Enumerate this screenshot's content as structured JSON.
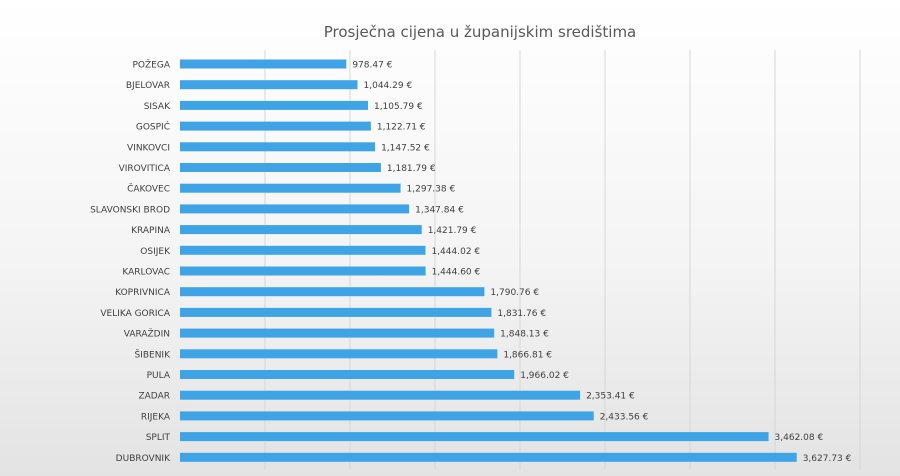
{
  "chart_data": {
    "type": "bar",
    "orientation": "horizontal",
    "title": "Prosječna cijena u županijskim središtima",
    "xlabel": "",
    "ylabel": "",
    "xlim": [
      0,
      4000
    ],
    "grid": true,
    "legend": "none",
    "bar_color": "#3ea4e6",
    "categories": [
      "POŽEGA",
      "BJELOVAR",
      "SISAK",
      "GOSPIĆ",
      "VINKOVCI",
      "VIROVITICA",
      "ČAKOVEC",
      "SLAVONSKI BROD",
      "KRAPINA",
      "OSIJEK",
      "KARLOVAC",
      "KOPRIVNICA",
      "VELIKA GORICA",
      "VARAŽDIN",
      "ŠIBENIK",
      "PULA",
      "ZADAR",
      "RIJEKA",
      "SPLIT",
      "DUBROVNIK"
    ],
    "values": [
      978.47,
      1044.29,
      1105.79,
      1122.71,
      1147.52,
      1181.79,
      1297.38,
      1347.84,
      1421.79,
      1444.02,
      1444.6,
      1790.76,
      1831.76,
      1848.13,
      1866.81,
      1966.02,
      2353.41,
      2433.56,
      3462.08,
      3627.73
    ],
    "value_labels": [
      "978.47 €",
      "1,044.29 €",
      "1,105.79 €",
      "1,122.71 €",
      "1,147.52 €",
      "1,181.79 €",
      "1,297.38 €",
      "1,347.84 €",
      "1,421.79 €",
      "1,444.02 €",
      "1,444.60 €",
      "1,790.76 €",
      "1,831.76 €",
      "1,848.13 €",
      "1,866.81 €",
      "1,966.02 €",
      "2,353.41 €",
      "2,433.56 €",
      "3,462.08 €",
      "3,627.73 €"
    ]
  }
}
